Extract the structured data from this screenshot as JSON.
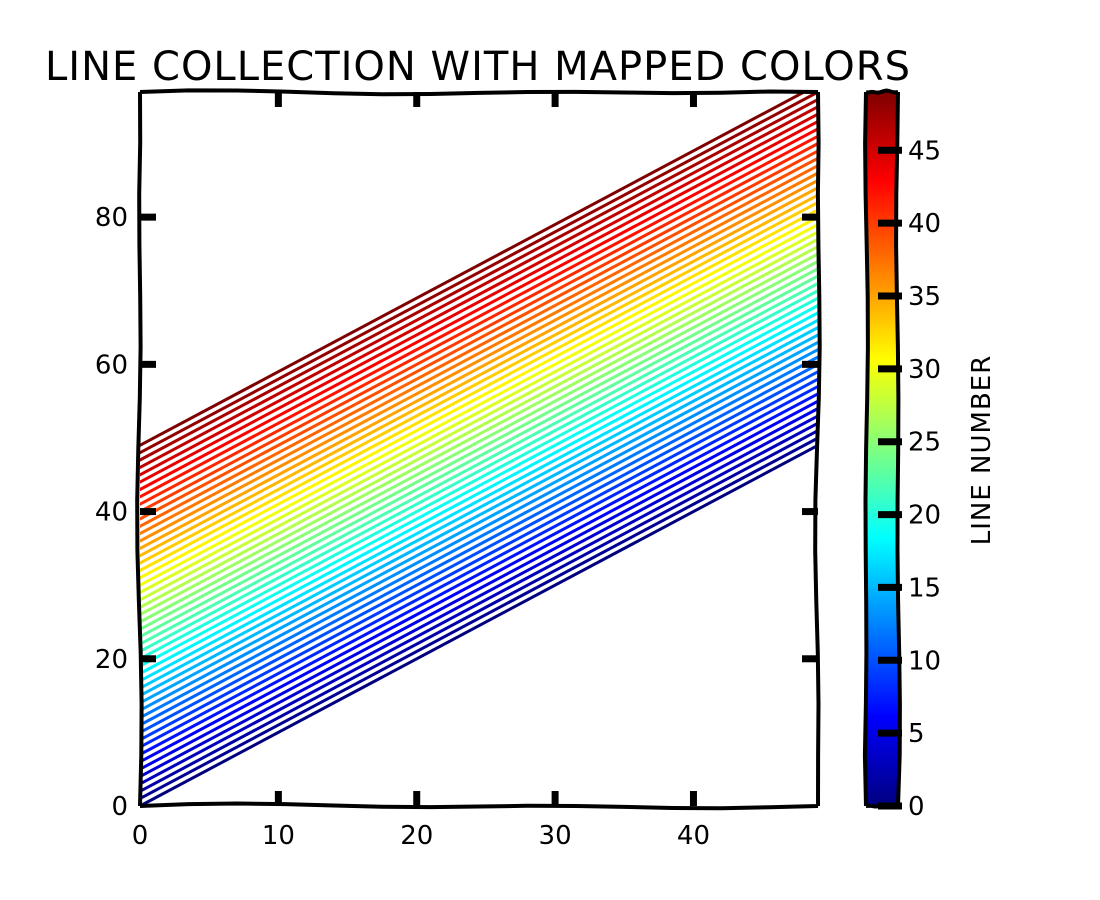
{
  "chart_data": {
    "type": "line",
    "title": "LINE COLLECTION WITH MAPPED COLORS",
    "xlabel": "",
    "ylabel": "",
    "xlim": [
      0,
      49
    ],
    "ylim": [
      0,
      97
    ],
    "x_ticks": [
      0,
      10,
      20,
      30,
      40
    ],
    "y_ticks": [
      0,
      20,
      40,
      60,
      80
    ],
    "line_count": 50,
    "line_rule": "y = x + k for line number k",
    "series": [
      {
        "line_number": 0,
        "x": [
          0,
          49
        ],
        "y": [
          0,
          49
        ]
      },
      {
        "line_number": 1,
        "x": [
          0,
          49
        ],
        "y": [
          1,
          50
        ]
      },
      {
        "line_number": 2,
        "x": [
          0,
          49
        ],
        "y": [
          2,
          51
        ]
      },
      {
        "line_number": 3,
        "x": [
          0,
          49
        ],
        "y": [
          3,
          52
        ]
      },
      {
        "line_number": 4,
        "x": [
          0,
          49
        ],
        "y": [
          4,
          53
        ]
      },
      {
        "line_number": 5,
        "x": [
          0,
          49
        ],
        "y": [
          5,
          54
        ]
      },
      {
        "line_number": 6,
        "x": [
          0,
          49
        ],
        "y": [
          6,
          55
        ]
      },
      {
        "line_number": 7,
        "x": [
          0,
          49
        ],
        "y": [
          7,
          56
        ]
      },
      {
        "line_number": 8,
        "x": [
          0,
          49
        ],
        "y": [
          8,
          57
        ]
      },
      {
        "line_number": 9,
        "x": [
          0,
          49
        ],
        "y": [
          9,
          58
        ]
      },
      {
        "line_number": 10,
        "x": [
          0,
          49
        ],
        "y": [
          10,
          59
        ]
      },
      {
        "line_number": 11,
        "x": [
          0,
          49
        ],
        "y": [
          11,
          60
        ]
      },
      {
        "line_number": 12,
        "x": [
          0,
          49
        ],
        "y": [
          12,
          61
        ]
      },
      {
        "line_number": 13,
        "x": [
          0,
          49
        ],
        "y": [
          13,
          62
        ]
      },
      {
        "line_number": 14,
        "x": [
          0,
          49
        ],
        "y": [
          14,
          63
        ]
      },
      {
        "line_number": 15,
        "x": [
          0,
          49
        ],
        "y": [
          15,
          64
        ]
      },
      {
        "line_number": 16,
        "x": [
          0,
          49
        ],
        "y": [
          16,
          65
        ]
      },
      {
        "line_number": 17,
        "x": [
          0,
          49
        ],
        "y": [
          17,
          66
        ]
      },
      {
        "line_number": 18,
        "x": [
          0,
          49
        ],
        "y": [
          18,
          67
        ]
      },
      {
        "line_number": 19,
        "x": [
          0,
          49
        ],
        "y": [
          19,
          68
        ]
      },
      {
        "line_number": 20,
        "x": [
          0,
          49
        ],
        "y": [
          20,
          69
        ]
      },
      {
        "line_number": 21,
        "x": [
          0,
          49
        ],
        "y": [
          21,
          70
        ]
      },
      {
        "line_number": 22,
        "x": [
          0,
          49
        ],
        "y": [
          22,
          71
        ]
      },
      {
        "line_number": 23,
        "x": [
          0,
          49
        ],
        "y": [
          23,
          72
        ]
      },
      {
        "line_number": 24,
        "x": [
          0,
          49
        ],
        "y": [
          24,
          73
        ]
      },
      {
        "line_number": 25,
        "x": [
          0,
          49
        ],
        "y": [
          25,
          74
        ]
      },
      {
        "line_number": 26,
        "x": [
          0,
          49
        ],
        "y": [
          26,
          75
        ]
      },
      {
        "line_number": 27,
        "x": [
          0,
          49
        ],
        "y": [
          27,
          76
        ]
      },
      {
        "line_number": 28,
        "x": [
          0,
          49
        ],
        "y": [
          28,
          77
        ]
      },
      {
        "line_number": 29,
        "x": [
          0,
          49
        ],
        "y": [
          29,
          78
        ]
      },
      {
        "line_number": 30,
        "x": [
          0,
          49
        ],
        "y": [
          30,
          79
        ]
      },
      {
        "line_number": 31,
        "x": [
          0,
          49
        ],
        "y": [
          31,
          80
        ]
      },
      {
        "line_number": 32,
        "x": [
          0,
          49
        ],
        "y": [
          32,
          81
        ]
      },
      {
        "line_number": 33,
        "x": [
          0,
          49
        ],
        "y": [
          33,
          82
        ]
      },
      {
        "line_number": 34,
        "x": [
          0,
          49
        ],
        "y": [
          34,
          83
        ]
      },
      {
        "line_number": 35,
        "x": [
          0,
          49
        ],
        "y": [
          35,
          84
        ]
      },
      {
        "line_number": 36,
        "x": [
          0,
          49
        ],
        "y": [
          36,
          85
        ]
      },
      {
        "line_number": 37,
        "x": [
          0,
          49
        ],
        "y": [
          37,
          86
        ]
      },
      {
        "line_number": 38,
        "x": [
          0,
          49
        ],
        "y": [
          38,
          87
        ]
      },
      {
        "line_number": 39,
        "x": [
          0,
          49
        ],
        "y": [
          39,
          88
        ]
      },
      {
        "line_number": 40,
        "x": [
          0,
          49
        ],
        "y": [
          40,
          89
        ]
      },
      {
        "line_number": 41,
        "x": [
          0,
          49
        ],
        "y": [
          41,
          90
        ]
      },
      {
        "line_number": 42,
        "x": [
          0,
          49
        ],
        "y": [
          42,
          91
        ]
      },
      {
        "line_number": 43,
        "x": [
          0,
          49
        ],
        "y": [
          43,
          92
        ]
      },
      {
        "line_number": 44,
        "x": [
          0,
          49
        ],
        "y": [
          44,
          93
        ]
      },
      {
        "line_number": 45,
        "x": [
          0,
          49
        ],
        "y": [
          45,
          94
        ]
      },
      {
        "line_number": 46,
        "x": [
          0,
          49
        ],
        "y": [
          46,
          95
        ]
      },
      {
        "line_number": 47,
        "x": [
          0,
          49
        ],
        "y": [
          47,
          96
        ]
      },
      {
        "line_number": 48,
        "x": [
          0,
          49
        ],
        "y": [
          48,
          97
        ]
      },
      {
        "line_number": 49,
        "x": [
          0,
          49
        ],
        "y": [
          49,
          98
        ]
      }
    ],
    "colormap": "jet",
    "colormap_stops": [
      "#00007f",
      "#0000ff",
      "#007fff",
      "#00ffff",
      "#7fff7f",
      "#ffff00",
      "#ff7f00",
      "#ff0000",
      "#7f0000"
    ],
    "colorbar": {
      "label": "LINE NUMBER",
      "range": [
        0,
        49
      ],
      "ticks": [
        0,
        5,
        10,
        15,
        20,
        25,
        30,
        35,
        40,
        45
      ]
    },
    "grid": false,
    "legend": "none",
    "style": "xkcd"
  }
}
